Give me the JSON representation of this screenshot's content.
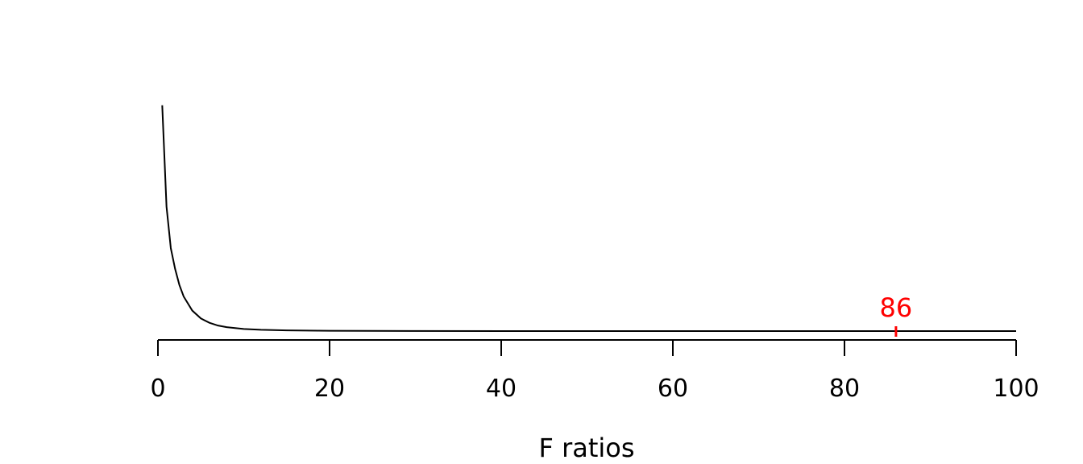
{
  "chart_data": {
    "type": "line",
    "title": "",
    "xlabel": "F ratios",
    "ylabel": "",
    "xlim": [
      0,
      100
    ],
    "x_ticks": [
      0,
      20,
      40,
      60,
      80,
      100
    ],
    "x_tick_labels": [
      "0",
      "20",
      "40",
      "60",
      "80",
      "100"
    ],
    "series": [
      {
        "x": [
          0.5,
          1,
          1.5,
          2,
          2.5,
          3,
          4,
          5,
          6,
          7,
          8,
          10,
          12,
          15,
          20,
          25,
          30,
          40,
          50,
          60,
          70,
          80,
          90,
          100
        ],
        "y": [
          0.98,
          0.54,
          0.36,
          0.27,
          0.2,
          0.15,
          0.089,
          0.055,
          0.036,
          0.024,
          0.017,
          0.009,
          0.0055,
          0.003,
          0.0013,
          0.0007,
          0.0004,
          0.0002,
          0.0001,
          5e-05,
          3e-05,
          2e-05,
          1e-05,
          1e-05
        ],
        "color": "#000000"
      }
    ],
    "ylim": [
      0,
      1.0
    ],
    "marker": {
      "x": 86,
      "label": "86",
      "color": "#ff0000"
    },
    "grid": false,
    "y_axis_shown": false
  }
}
